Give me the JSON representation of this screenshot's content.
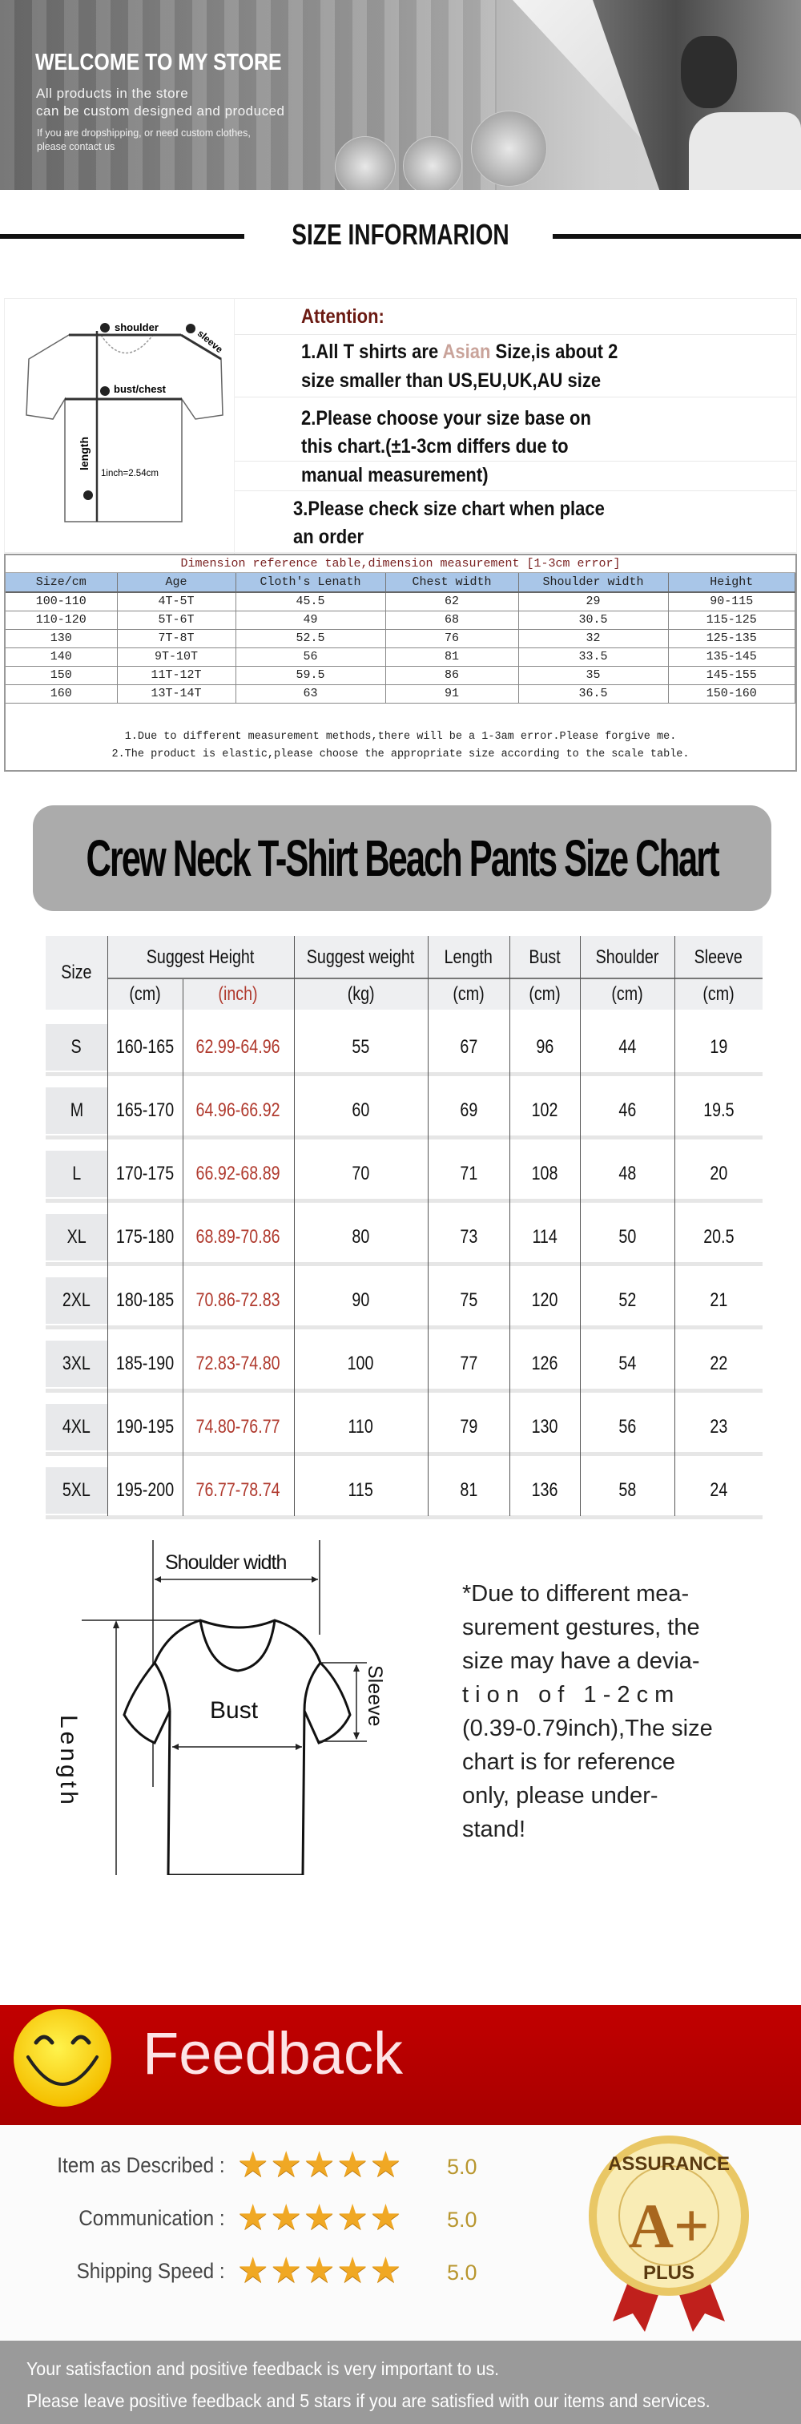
{
  "banner": {
    "title": "WELCOME TO MY STORE",
    "line1": "All products in the store",
    "line2": "can be custom designed and produced",
    "small1": "If you are dropshipping, or need custom clothes,",
    "small2": "please contact us"
  },
  "size_info": {
    "heading": "SIZE INFORMARION",
    "diagram_labels": {
      "shoulder": "shoulder",
      "sleeve": "sleeve",
      "bust": "bust/chest",
      "length": "length",
      "inch": "1inch=2.54cm"
    },
    "attention": {
      "title": "Attention:",
      "p1_before": "1.All T shirts are ",
      "p1_highlight": "Asian",
      "p1_after": " Size,is about 2",
      "p1_line2": "size smaller than US,EU,UK,AU size",
      "p2_line1": "2.Please choose your size base on",
      "p2_line2": "this chart.(±1-3cm differs due to",
      "p2_line3": "manual measurement)",
      "p3_line1": "3.Please check size chart when place",
      "p3_line2": "an order"
    },
    "colors": {
      "attention_title": "#6b1a12",
      "highlight": "#c9a39a",
      "header_bg": "#a9c6e8"
    }
  },
  "dimension_table": {
    "caption": "Dimension reference table,dimension measurement [1-3cm error]",
    "headers": [
      "Size/cm",
      "Age",
      "Cloth's Lenath",
      "Chest width",
      "Shoulder width",
      "Height"
    ],
    "rows": [
      [
        "100-110",
        "4T-5T",
        "45.5",
        "62",
        "29",
        "90-115"
      ],
      [
        "110-120",
        "5T-6T",
        "49",
        "68",
        "30.5",
        "115-125"
      ],
      [
        "130",
        "7T-8T",
        "52.5",
        "76",
        "32",
        "125-135"
      ],
      [
        "140",
        "9T-10T",
        "56",
        "81",
        "33.5",
        "135-145"
      ],
      [
        "150",
        "11T-12T",
        "59.5",
        "86",
        "35",
        "145-155"
      ],
      [
        "160",
        "13T-14T",
        "63",
        "91",
        "36.5",
        "150-160"
      ]
    ],
    "note1": "1.Due to different measurement methods,there will be a 1-3am error.Please forgive me.",
    "note2": "2.The product is elastic,please choose the appropriate size according to the scale table."
  },
  "crew_chart": {
    "title": "Crew Neck T-Shirt Beach Pants Size Chart",
    "headers": {
      "size": "Size",
      "height": "Suggest Height",
      "weight": "Suggest weight",
      "length": "Length",
      "bust": "Bust",
      "shoulder": "Shoulder",
      "sleeve": "Sleeve"
    },
    "units": [
      "(cm)",
      "(inch)",
      "(kg)",
      "(cm)",
      "(cm)",
      "(cm)",
      "(cm)"
    ],
    "inch_color": "#b03a2e",
    "rows": [
      [
        "S",
        "160-165",
        "62.99-64.96",
        "55",
        "67",
        "96",
        "44",
        "19"
      ],
      [
        "M",
        "165-170",
        "64.96-66.92",
        "60",
        "69",
        "102",
        "46",
        "19.5"
      ],
      [
        "L",
        "170-175",
        "66.92-68.89",
        "70",
        "71",
        "108",
        "48",
        "20"
      ],
      [
        "XL",
        "175-180",
        "68.89-70.86",
        "80",
        "73",
        "114",
        "50",
        "20.5"
      ],
      [
        "2XL",
        "180-185",
        "70.86-72.83",
        "90",
        "75",
        "120",
        "52",
        "21"
      ],
      [
        "3XL",
        "185-190",
        "72.83-74.80",
        "100",
        "77",
        "126",
        "54",
        "22"
      ],
      [
        "4XL",
        "190-195",
        "74.80-76.77",
        "110",
        "79",
        "130",
        "56",
        "23"
      ],
      [
        "5XL",
        "195-200",
        "76.77-78.74",
        "115",
        "81",
        "136",
        "58",
        "24"
      ]
    ]
  },
  "diagram": {
    "shoulder_width": "Shoulder width",
    "bust": "Bust",
    "sleeve": "Sleeve",
    "length": "Length",
    "note_lines": [
      "*Due to different mea-",
      "surement gestures, the",
      "size may have a devia-",
      "t i o n   o f   1 - 2 c m",
      "(0.39-0.79inch),The size",
      "chart is for reference",
      "only, please under-",
      "stand!"
    ]
  },
  "feedback": {
    "title": "Feedback",
    "ratings": [
      {
        "label": "Item as Described :",
        "stars": 5,
        "score": "5.0"
      },
      {
        "label": "Communication :",
        "stars": 5,
        "score": "5.0"
      },
      {
        "label": "Shipping Speed :",
        "stars": 5,
        "score": "5.0"
      }
    ],
    "badge": {
      "top": "ASSURANCE",
      "grade": "A+",
      "bottom": "PLUS"
    },
    "footer1": "Your satisfaction and positive feedback is very important to us.",
    "footer2": "Please leave positive feedback and 5 stars if you are satisfied with our items and services.",
    "colors": {
      "banner": "#b50000",
      "star": "#f0a824",
      "footer": "#9a9a9a"
    }
  }
}
